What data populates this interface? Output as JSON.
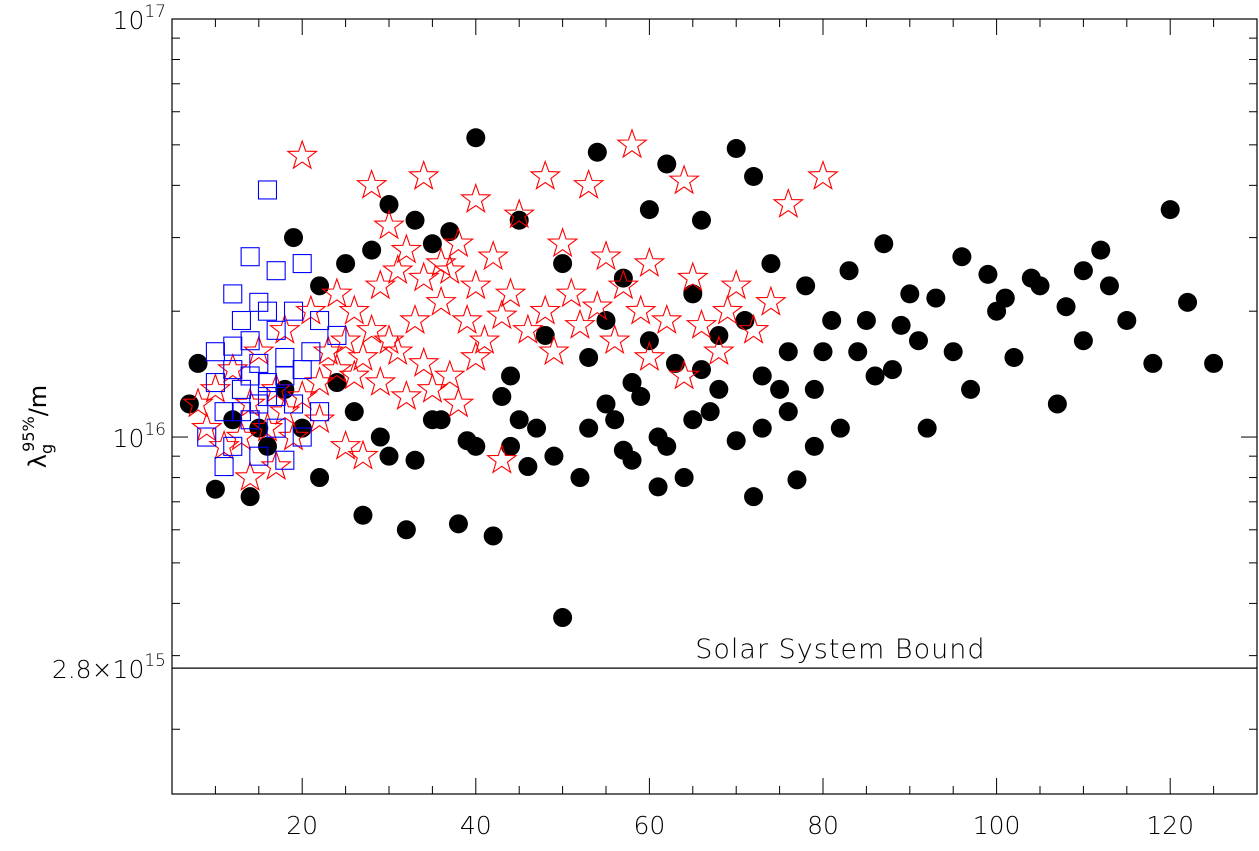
{
  "chart_data": {
    "type": "scatter",
    "title": "",
    "xlabel": "",
    "ylabel": "λ_g^95%/m",
    "ylabel_parts": {
      "base": "λ",
      "sub": "g",
      "sup": "95%",
      "suffix": "/m"
    },
    "xlim": [
      5,
      130
    ],
    "ylim": [
      1400000000000000.0,
      1e+17
    ],
    "yscale": "log",
    "grid": false,
    "legend": "none",
    "x_ticks": [
      {
        "value": 20,
        "label": "20"
      },
      {
        "value": 40,
        "label": "40"
      },
      {
        "value": 60,
        "label": "60"
      },
      {
        "value": 80,
        "label": "80"
      },
      {
        "value": 100,
        "label": "100"
      },
      {
        "value": 120,
        "label": "120"
      }
    ],
    "y_ticks": [
      {
        "value": 1e+16,
        "label_base": "10",
        "label_exp": "16"
      },
      {
        "value": 1e+17,
        "label_base": "10",
        "label_exp": "17"
      },
      {
        "value": 2800000000000000.0,
        "label_mant": "2.8×10",
        "label_exp": "15"
      }
    ],
    "reference_line": {
      "y": 2800000000000000.0,
      "label": "Solar System Bound",
      "label_x": 82,
      "color": "#000000"
    },
    "series": [
      {
        "marker": "filled-circle",
        "color": "#000000",
        "points": [
          [
            7,
            1.2e+16
          ],
          [
            8,
            1.5e+16
          ],
          [
            10,
            7500000000000000.0
          ],
          [
            12,
            1.1e+16
          ],
          [
            14,
            7200000000000000.0
          ],
          [
            16,
            9500000000000000.0
          ],
          [
            18,
            1.3e+16
          ],
          [
            22,
            8000000000000000.0
          ],
          [
            24,
            1.35e+16
          ],
          [
            27,
            6500000000000000.0
          ],
          [
            30,
            9000000000000000.0
          ],
          [
            32,
            6000000000000000.0
          ],
          [
            35,
            1.1e+16
          ],
          [
            38,
            6200000000000000.0
          ],
          [
            40,
            9500000000000000.0
          ],
          [
            42,
            5800000000000000.0
          ],
          [
            44,
            1.4e+16
          ],
          [
            47,
            1.05e+16
          ],
          [
            50,
            3700000000000000.0
          ],
          [
            52,
            8000000000000000.0
          ],
          [
            55,
            1.2e+16
          ],
          [
            58,
            8800000000000000.0
          ],
          [
            61,
            7600000000000000.0
          ],
          [
            64,
            8000000000000000.0
          ],
          [
            67,
            1.15e+16
          ],
          [
            70,
            9800000000000000.0
          ],
          [
            72,
            7200000000000000.0
          ],
          [
            75,
            1.3e+16
          ],
          [
            77,
            7900000000000000.0
          ],
          [
            80,
            1.6e+16
          ],
          [
            82,
            1.05e+16
          ],
          [
            85,
            1.9e+16
          ],
          [
            88,
            1.45e+16
          ],
          [
            90,
            2.2e+16
          ],
          [
            92,
            1.05e+16
          ],
          [
            95,
            1.6e+16
          ],
          [
            97,
            1.3e+16
          ],
          [
            100,
            2e+16
          ],
          [
            102,
            1.55e+16
          ],
          [
            104,
            2.4e+16
          ],
          [
            107,
            1.2e+16
          ],
          [
            110,
            1.7e+16
          ],
          [
            112,
            2.8e+16
          ],
          [
            115,
            1.9e+16
          ],
          [
            118,
            1.5e+16
          ],
          [
            120,
            3.5e+16
          ],
          [
            122,
            2.1e+16
          ],
          [
            125,
            1.5e+16
          ],
          [
            40,
            5.2e+16
          ],
          [
            54,
            4.8e+16
          ],
          [
            62,
            4.5e+16
          ],
          [
            70,
            4.9e+16
          ],
          [
            72,
            4.2e+16
          ],
          [
            60,
            3.5e+16
          ],
          [
            66,
            3.3e+16
          ],
          [
            45,
            3.3e+16
          ],
          [
            50,
            2.6e+16
          ],
          [
            57,
            2.4e+16
          ],
          [
            65,
            2.2e+16
          ],
          [
            74,
            2.6e+16
          ],
          [
            78,
            2.3e+16
          ],
          [
            83,
            2.5e+16
          ],
          [
            87,
            2.9e+16
          ],
          [
            93,
            2.15e+16
          ],
          [
            99,
            2.45e+16
          ],
          [
            105,
            2.3e+16
          ],
          [
            110,
            2.5e+16
          ],
          [
            113,
            2.3e+16
          ],
          [
            108,
            2.05e+16
          ],
          [
            101,
            2.15e+16
          ],
          [
            96,
            2.7e+16
          ],
          [
            91,
            1.7e+16
          ],
          [
            84,
            1.6e+16
          ],
          [
            79,
            1.3e+16
          ],
          [
            73,
            1.4e+16
          ],
          [
            68,
            1.75e+16
          ],
          [
            63,
            1.5e+16
          ],
          [
            58,
            1.35e+16
          ],
          [
            53,
            1.55e+16
          ],
          [
            48,
            1.75e+16
          ],
          [
            43,
            1.25e+16
          ],
          [
            36,
            1.1e+16
          ],
          [
            33,
            8800000000000000.0
          ],
          [
            29,
            1e+16
          ],
          [
            26,
            1.15e+16
          ],
          [
            20,
            1.05e+16
          ],
          [
            15,
            1.05e+16
          ],
          [
            55,
            1.9e+16
          ],
          [
            60,
            1.7e+16
          ],
          [
            66,
            1.45e+16
          ],
          [
            71,
            1.9e+16
          ],
          [
            76,
            1.6e+16
          ],
          [
            81,
            1.9e+16
          ],
          [
            86,
            1.4e+16
          ],
          [
            89,
            1.85e+16
          ],
          [
            56,
            1.1e+16
          ],
          [
            59,
            1.25e+16
          ],
          [
            62,
            9500000000000000.0
          ],
          [
            65,
            1.1e+16
          ],
          [
            68,
            1.3e+16
          ],
          [
            73,
            1.05e+16
          ],
          [
            76,
            1.15e+16
          ],
          [
            79,
            9500000000000000.0
          ],
          [
            44,
            9500000000000000.0
          ],
          [
            46,
            8500000000000000.0
          ],
          [
            49,
            9000000000000000.0
          ],
          [
            53,
            1.05e+16
          ],
          [
            57,
            9300000000000000.0
          ],
          [
            61,
            1e+16
          ],
          [
            45,
            1.1e+16
          ],
          [
            39,
            9800000000000000.0
          ],
          [
            28,
            2.8e+16
          ],
          [
            30,
            3.6e+16
          ],
          [
            33,
            3.3e+16
          ],
          [
            35,
            2.9e+16
          ],
          [
            37,
            3.1e+16
          ],
          [
            25,
            2.6e+16
          ],
          [
            22,
            2.3e+16
          ],
          [
            19,
            3e+16
          ]
        ]
      },
      {
        "marker": "open-star",
        "color": "#ff0000",
        "points": [
          [
            20,
            4.7e+16
          ],
          [
            58,
            5e+16
          ],
          [
            34,
            4.2e+16
          ],
          [
            48,
            4.2e+16
          ],
          [
            53,
            4e+16
          ],
          [
            64,
            4.1e+16
          ],
          [
            80,
            4.2e+16
          ],
          [
            76,
            3.6e+16
          ],
          [
            28,
            4e+16
          ],
          [
            40,
            3.7e+16
          ],
          [
            45,
            3.4e+16
          ],
          [
            14,
            8000000000000000.0
          ],
          [
            17,
            8500000000000000.0
          ],
          [
            25,
            9500000000000000.0
          ],
          [
            27,
            9000000000000000.0
          ],
          [
            43,
            8800000000000000.0
          ],
          [
            30,
            3.2e+16
          ],
          [
            32,
            2.8e+16
          ],
          [
            36,
            2.6e+16
          ],
          [
            38,
            2.9e+16
          ],
          [
            42,
            2.7e+16
          ],
          [
            50,
            2.9e+16
          ],
          [
            55,
            2.7e+16
          ],
          [
            60,
            2.6e+16
          ],
          [
            65,
            2.4e+16
          ],
          [
            70,
            2.3e+16
          ],
          [
            74,
            2.1e+16
          ],
          [
            72,
            1.8e+16
          ],
          [
            68,
            1.6e+16
          ],
          [
            64,
            1.4e+16
          ],
          [
            60,
            1.55e+16
          ],
          [
            56,
            1.7e+16
          ],
          [
            52,
            1.85e+16
          ],
          [
            48,
            2e+16
          ],
          [
            44,
            2.2e+16
          ],
          [
            40,
            2.3e+16
          ],
          [
            36,
            2.1e+16
          ],
          [
            33,
            1.9e+16
          ],
          [
            30,
            1.7e+16
          ],
          [
            27,
            1.55e+16
          ],
          [
            24,
            1.45e+16
          ],
          [
            22,
            1.35e+16
          ],
          [
            20,
            1.25e+16
          ],
          [
            18,
            1.15e+16
          ],
          [
            16,
            1.05e+16
          ],
          [
            13,
            1e+16
          ],
          [
            11,
            9500000000000000.0
          ],
          [
            9,
            1.05e+16
          ],
          [
            8,
            1.2e+16
          ],
          [
            10,
            1.3e+16
          ],
          [
            12,
            1.45e+16
          ],
          [
            15,
            1.6e+16
          ],
          [
            18,
            1.8e+16
          ],
          [
            21,
            2e+16
          ],
          [
            24,
            2.2e+16
          ],
          [
            26,
            2e+16
          ],
          [
            29,
            2.3e+16
          ],
          [
            31,
            2.5e+16
          ],
          [
            34,
            2.4e+16
          ],
          [
            37,
            2.5e+16
          ],
          [
            39,
            1.9e+16
          ],
          [
            41,
            1.7e+16
          ],
          [
            43,
            1.95e+16
          ],
          [
            46,
            1.8e+16
          ],
          [
            49,
            1.6e+16
          ],
          [
            51,
            2.2e+16
          ],
          [
            54,
            2.05e+16
          ],
          [
            57,
            2.3e+16
          ],
          [
            59,
            2e+16
          ],
          [
            62,
            1.9e+16
          ],
          [
            66,
            1.85e+16
          ],
          [
            69,
            2e+16
          ],
          [
            25,
            1.7e+16
          ],
          [
            28,
            1.8e+16
          ],
          [
            31,
            1.6e+16
          ],
          [
            34,
            1.5e+16
          ],
          [
            37,
            1.4e+16
          ],
          [
            40,
            1.55e+16
          ],
          [
            23,
            1.6e+16
          ],
          [
            26,
            1.4e+16
          ],
          [
            29,
            1.35e+16
          ],
          [
            32,
            1.25e+16
          ],
          [
            35,
            1.3e+16
          ],
          [
            38,
            1.2e+16
          ],
          [
            22,
            1.1e+16
          ],
          [
            19,
            1e+16
          ],
          [
            17,
            1.3e+16
          ],
          [
            14,
            1.2e+16
          ]
        ]
      },
      {
        "marker": "open-square",
        "color": "#0000ff",
        "points": [
          [
            16,
            3.9e+16
          ],
          [
            14,
            2.7e+16
          ],
          [
            20,
            2.6e+16
          ],
          [
            17,
            2.5e+16
          ],
          [
            12,
            2.2e+16
          ],
          [
            15,
            2.1e+16
          ],
          [
            19,
            2e+16
          ],
          [
            22,
            1.9e+16
          ],
          [
            24,
            1.75e+16
          ],
          [
            21,
            1.6e+16
          ],
          [
            18,
            1.55e+16
          ],
          [
            15,
            1.5e+16
          ],
          [
            12,
            1.45e+16
          ],
          [
            10,
            1.35e+16
          ],
          [
            13,
            1.3e+16
          ],
          [
            16,
            1.25e+16
          ],
          [
            19,
            1.2e+16
          ],
          [
            22,
            1.15e+16
          ],
          [
            11,
            1.15e+16
          ],
          [
            14,
            1.1e+16
          ],
          [
            17,
            1.05e+16
          ],
          [
            20,
            1e+16
          ],
          [
            9,
            1e+16
          ],
          [
            12,
            9500000000000000.0
          ],
          [
            15,
            9000000000000000.0
          ],
          [
            18,
            8800000000000000.0
          ],
          [
            11,
            8500000000000000.0
          ],
          [
            14,
            1.7e+16
          ],
          [
            17,
            1.8e+16
          ],
          [
            13,
            1.9e+16
          ],
          [
            16,
            2e+16
          ],
          [
            10,
            1.6e+16
          ],
          [
            12,
            1.65e+16
          ],
          [
            14,
            1.4e+16
          ],
          [
            16,
            1.35e+16
          ],
          [
            18,
            1.4e+16
          ],
          [
            20,
            1.45e+16
          ],
          [
            13,
            1.15e+16
          ],
          [
            15,
            1.2e+16
          ],
          [
            17,
            1.25e+16
          ]
        ]
      }
    ]
  }
}
